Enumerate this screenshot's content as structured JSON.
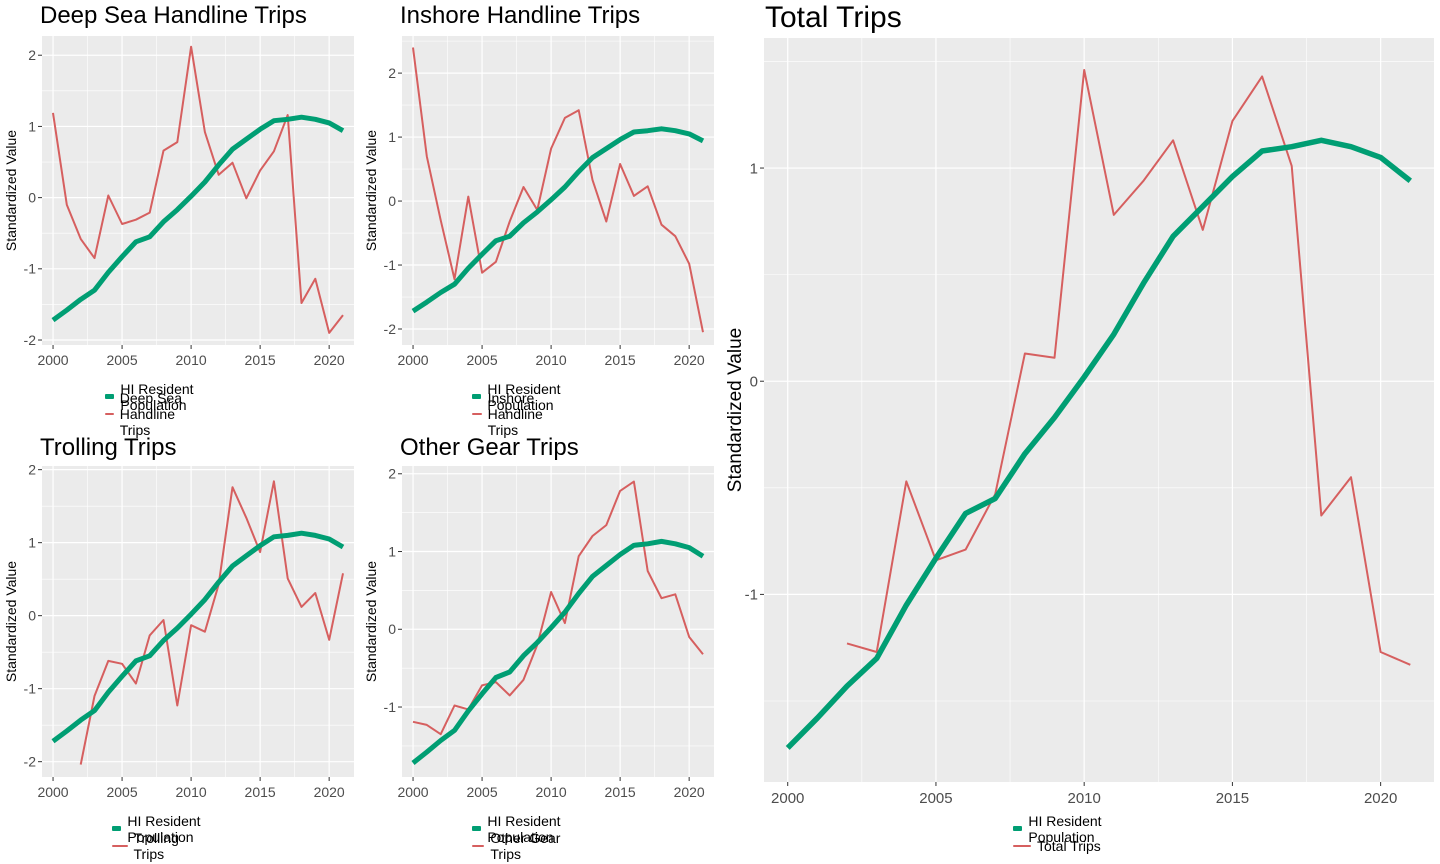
{
  "colors": {
    "population": "#009E73",
    "trips": "#D65F5F",
    "panel_bg": "#EBEBEB",
    "grid": "#FFFFFF",
    "axis_text": "#4D4D4D"
  },
  "population_values": [
    -1.72,
    -1.58,
    -1.43,
    -1.3,
    -1.05,
    -0.83,
    -0.62,
    -0.55,
    -0.34,
    -0.17,
    0.02,
    0.22,
    0.46,
    0.68,
    0.82,
    0.96,
    1.08,
    1.1,
    1.13,
    1.1,
    1.05,
    0.94
  ],
  "chart_data": [
    {
      "type": "line",
      "title": "Deep Sea Handline Trips",
      "xlabel": "",
      "ylabel": "Standardized Value",
      "xlim": [
        1999.2,
        2021.8
      ],
      "ylim": [
        -2.07,
        2.27
      ],
      "x_ticks": [
        2000,
        2005,
        2010,
        2015,
        2020
      ],
      "y_ticks": [
        -2,
        -1,
        0,
        1,
        2
      ],
      "y_tick_labels": [
        "-2",
        "-1",
        "0",
        "1",
        "2"
      ],
      "legend": {
        "position": "bottom",
        "items": [
          "HI Resident Population",
          "Deep Sea Handline Trips"
        ]
      },
      "series": [
        {
          "name": "HI Resident Population",
          "x": [
            2000,
            2001,
            2002,
            2003,
            2004,
            2005,
            2006,
            2007,
            2008,
            2009,
            2010,
            2011,
            2012,
            2013,
            2014,
            2015,
            2016,
            2017,
            2018,
            2019,
            2020,
            2021
          ]
        },
        {
          "name": "Deep Sea Handline Trips",
          "x": [
            2000,
            2001,
            2002,
            2003,
            2004,
            2005,
            2006,
            2007,
            2008,
            2009,
            2010,
            2011,
            2012,
            2013,
            2014,
            2015,
            2016,
            2017,
            2018,
            2019,
            2020,
            2021
          ],
          "values": [
            1.19,
            -0.1,
            -0.58,
            -0.85,
            0.03,
            -0.37,
            -0.31,
            -0.21,
            0.66,
            0.78,
            2.12,
            0.92,
            0.32,
            0.49,
            -0.01,
            0.38,
            0.65,
            1.16,
            -1.48,
            -1.14,
            -1.9,
            -1.65
          ]
        }
      ]
    },
    {
      "type": "line",
      "title": "Inshore Handline Trips",
      "xlabel": "",
      "ylabel": "Standardized Value",
      "xlim": [
        1999.2,
        2021.8
      ],
      "ylim": [
        -2.25,
        2.58
      ],
      "x_ticks": [
        2000,
        2005,
        2010,
        2015,
        2020
      ],
      "y_ticks": [
        -2,
        -1,
        0,
        1,
        2
      ],
      "y_tick_labels": [
        "-2",
        "-1",
        "0",
        "1",
        "2"
      ],
      "legend": {
        "position": "bottom",
        "items": [
          "HI Resident Population",
          "Inshore Handline Trips"
        ]
      },
      "series": [
        {
          "name": "HI Resident Population",
          "x": [
            2000,
            2001,
            2002,
            2003,
            2004,
            2005,
            2006,
            2007,
            2008,
            2009,
            2010,
            2011,
            2012,
            2013,
            2014,
            2015,
            2016,
            2017,
            2018,
            2019,
            2020,
            2021
          ]
        },
        {
          "name": "Inshore Handline Trips",
          "x": [
            2000,
            2001,
            2002,
            2003,
            2004,
            2005,
            2006,
            2007,
            2008,
            2009,
            2010,
            2011,
            2012,
            2013,
            2014,
            2015,
            2016,
            2017,
            2018,
            2019,
            2020,
            2021
          ],
          "values": [
            2.4,
            0.7,
            -0.3,
            -1.22,
            0.07,
            -1.12,
            -0.95,
            -0.32,
            0.22,
            -0.14,
            0.82,
            1.3,
            1.42,
            0.33,
            -0.32,
            0.58,
            0.08,
            0.23,
            -0.37,
            -0.55,
            -0.98,
            -2.05
          ]
        }
      ]
    },
    {
      "type": "line",
      "title": "Trolling Trips",
      "xlabel": "",
      "ylabel": "Standardized Value",
      "xlim": [
        1999.2,
        2021.8
      ],
      "ylim": [
        -2.21,
        2.05
      ],
      "x_ticks": [
        2000,
        2005,
        2010,
        2015,
        2020
      ],
      "y_ticks": [
        -2,
        -1,
        0,
        1,
        2
      ],
      "y_tick_labels": [
        "-2",
        "-1",
        "0",
        "1",
        "2"
      ],
      "legend": {
        "position": "bottom",
        "items": [
          "HI Resident Population",
          "Trolling Trips"
        ]
      },
      "series": [
        {
          "name": "HI Resident Population",
          "x": [
            2000,
            2001,
            2002,
            2003,
            2004,
            2005,
            2006,
            2007,
            2008,
            2009,
            2010,
            2011,
            2012,
            2013,
            2014,
            2015,
            2016,
            2017,
            2018,
            2019,
            2020,
            2021
          ]
        },
        {
          "name": "Trolling Trips",
          "x": [
            2002,
            2003,
            2004,
            2005,
            2006,
            2007,
            2008,
            2009,
            2010,
            2011,
            2012,
            2013,
            2014,
            2015,
            2016,
            2017,
            2018,
            2019,
            2020,
            2021
          ],
          "values": [
            -2.04,
            -1.1,
            -0.62,
            -0.66,
            -0.93,
            -0.27,
            -0.06,
            -1.23,
            -0.13,
            -0.22,
            0.43,
            1.76,
            1.34,
            0.87,
            1.84,
            0.51,
            0.12,
            0.31,
            -0.33,
            0.58
          ]
        }
      ]
    },
    {
      "type": "line",
      "title": "Other Gear Trips",
      "xlabel": "",
      "ylabel": "Standardized Value",
      "xlim": [
        1999.2,
        2021.8
      ],
      "ylim": [
        -1.9,
        2.1
      ],
      "x_ticks": [
        2000,
        2005,
        2010,
        2015,
        2020
      ],
      "y_ticks": [
        -1,
        0,
        1,
        2
      ],
      "y_tick_labels": [
        "-1",
        "0",
        "1",
        "2"
      ],
      "legend": {
        "position": "bottom",
        "items": [
          "HI Resident Population",
          "Other Gear Trips"
        ]
      },
      "series": [
        {
          "name": "HI Resident Population",
          "x": [
            2000,
            2001,
            2002,
            2003,
            2004,
            2005,
            2006,
            2007,
            2008,
            2009,
            2010,
            2011,
            2012,
            2013,
            2014,
            2015,
            2016,
            2017,
            2018,
            2019,
            2020,
            2021
          ]
        },
        {
          "name": "Other Gear Trips",
          "x": [
            2000,
            2001,
            2002,
            2003,
            2004,
            2005,
            2006,
            2007,
            2008,
            2009,
            2010,
            2011,
            2012,
            2013,
            2014,
            2015,
            2016,
            2017,
            2018,
            2019,
            2020,
            2021
          ],
          "values": [
            -1.19,
            -1.23,
            -1.35,
            -0.98,
            -1.03,
            -0.72,
            -0.68,
            -0.85,
            -0.65,
            -0.2,
            0.48,
            0.08,
            0.94,
            1.2,
            1.34,
            1.78,
            1.9,
            0.75,
            0.4,
            0.45,
            -0.1,
            -0.32
          ]
        }
      ]
    },
    {
      "type": "line",
      "title": "Total Trips",
      "xlabel": "",
      "ylabel": "Standardized Value",
      "xlim": [
        1999.2,
        2021.8
      ],
      "ylim": [
        -1.88,
        1.61
      ],
      "x_ticks": [
        2000,
        2005,
        2010,
        2015,
        2020
      ],
      "y_ticks": [
        -1,
        0,
        1
      ],
      "y_tick_labels": [
        "-1",
        "0",
        "1"
      ],
      "legend": {
        "position": "bottom",
        "items": [
          "HI Resident Population",
          "Total Trips"
        ]
      },
      "series": [
        {
          "name": "HI Resident Population",
          "x": [
            2000,
            2001,
            2002,
            2003,
            2004,
            2005,
            2006,
            2007,
            2008,
            2009,
            2010,
            2011,
            2012,
            2013,
            2014,
            2015,
            2016,
            2017,
            2018,
            2019,
            2020,
            2021
          ]
        },
        {
          "name": "Total Trips",
          "x": [
            2002,
            2003,
            2004,
            2005,
            2006,
            2007,
            2008,
            2009,
            2010,
            2011,
            2012,
            2013,
            2014,
            2015,
            2016,
            2017,
            2018,
            2019,
            2020,
            2021
          ],
          "values": [
            -1.23,
            -1.27,
            -0.47,
            -0.84,
            -0.79,
            -0.53,
            0.13,
            0.11,
            1.46,
            0.78,
            0.94,
            1.13,
            0.71,
            1.22,
            1.43,
            1.01,
            -0.63,
            -0.45,
            -1.27,
            -1.33
          ]
        }
      ]
    }
  ]
}
